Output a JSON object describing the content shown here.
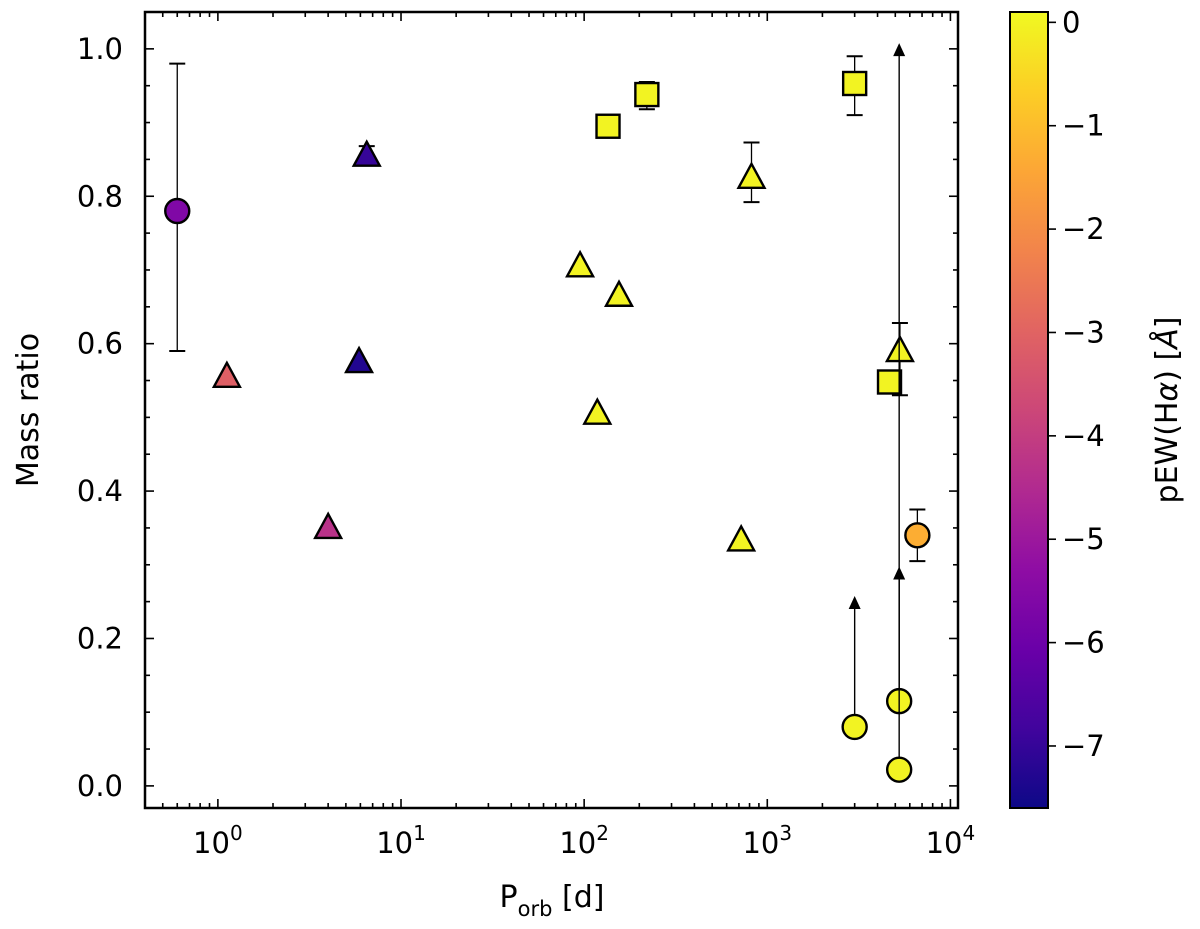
{
  "chart_data": {
    "type": "scatter",
    "title": "",
    "xlabel_main": "P",
    "xlabel_sub": "orb",
    "xlabel_unit": " [d]",
    "ylabel": "Mass ratio",
    "xscale": "log",
    "xlim": [
      0.4,
      11000
    ],
    "ylim": [
      -0.03,
      1.05
    ],
    "xticks": [
      {
        "value": 1,
        "base": "10",
        "exp": "0"
      },
      {
        "value": 10,
        "base": "10",
        "exp": "1"
      },
      {
        "value": 100,
        "base": "10",
        "exp": "2"
      },
      {
        "value": 1000,
        "base": "10",
        "exp": "3"
      },
      {
        "value": 10000,
        "base": "10",
        "exp": "4"
      }
    ],
    "yticks": [
      {
        "value": 0.0,
        "label": "0.0"
      },
      {
        "value": 0.2,
        "label": "0.2"
      },
      {
        "value": 0.4,
        "label": "0.4"
      },
      {
        "value": 0.6,
        "label": "0.6"
      },
      {
        "value": 0.8,
        "label": "0.8"
      },
      {
        "value": 1.0,
        "label": "1.0"
      }
    ],
    "colorbar": {
      "label_pre": "pEW(H",
      "label_alpha": "α",
      "label_post": ") [",
      "label_unit": "Å",
      "label_end": "]",
      "colormap": "plasma",
      "vmin": -7.6,
      "vmax": 0.1,
      "ticks": [
        {
          "value": 0,
          "label": "0"
        },
        {
          "value": -1,
          "label": "−1"
        },
        {
          "value": -2,
          "label": "−2"
        },
        {
          "value": -3,
          "label": "−3"
        },
        {
          "value": -4,
          "label": "−4"
        },
        {
          "value": -5,
          "label": "−5"
        },
        {
          "value": -6,
          "label": "−6"
        },
        {
          "value": -7,
          "label": "−7"
        }
      ]
    },
    "points": [
      {
        "x": 0.6,
        "y": 0.78,
        "marker": "circle",
        "c": -5.6,
        "err": [
          0.59,
          0.98
        ]
      },
      {
        "x": 1.12,
        "y": 0.555,
        "marker": "triangle",
        "c": -3.1
      },
      {
        "x": 4.0,
        "y": 0.35,
        "marker": "triangle",
        "c": -4.3
      },
      {
        "x": 5.9,
        "y": 0.575,
        "marker": "triangle",
        "c": -7.3
      },
      {
        "x": 6.5,
        "y": 0.855,
        "marker": "triangle",
        "c": -7.0,
        "err": [
          0.85,
          0.868
        ]
      },
      {
        "x": 95,
        "y": 0.705,
        "marker": "triangle",
        "c": 0
      },
      {
        "x": 118,
        "y": 0.505,
        "marker": "triangle",
        "c": 0
      },
      {
        "x": 135,
        "y": 0.895,
        "marker": "square",
        "c": 0
      },
      {
        "x": 155,
        "y": 0.665,
        "marker": "triangle",
        "c": 0
      },
      {
        "x": 220,
        "y": 0.938,
        "marker": "square",
        "c": 0,
        "err": [
          0.918,
          0.955
        ]
      },
      {
        "x": 720,
        "y": 0.333,
        "marker": "triangle",
        "c": 0
      },
      {
        "x": 820,
        "y": 0.825,
        "marker": "triangle",
        "c": 0,
        "err": [
          0.792,
          0.873
        ]
      },
      {
        "x": 3000,
        "y": 0.953,
        "marker": "square",
        "c": 0,
        "err": [
          0.91,
          0.99
        ]
      },
      {
        "x": 3000,
        "y": 0.08,
        "marker": "circle",
        "c": 0,
        "upper_arrow": 0.255
      },
      {
        "x": 4650,
        "y": 0.548,
        "marker": "square",
        "c": 0
      },
      {
        "x": 5300,
        "y": 0.59,
        "marker": "triangle",
        "c": 0,
        "err": [
          0.53,
          0.628
        ]
      },
      {
        "x": 5250,
        "y": 0.115,
        "marker": "circle",
        "c": 0,
        "upper_arrow": 0.295
      },
      {
        "x": 5250,
        "y": 0.022,
        "marker": "circle",
        "c": 0,
        "upper_arrow": 1.005
      },
      {
        "x": 6600,
        "y": 0.34,
        "marker": "circle",
        "c": -1.3,
        "err": [
          0.305,
          0.375
        ]
      }
    ]
  }
}
